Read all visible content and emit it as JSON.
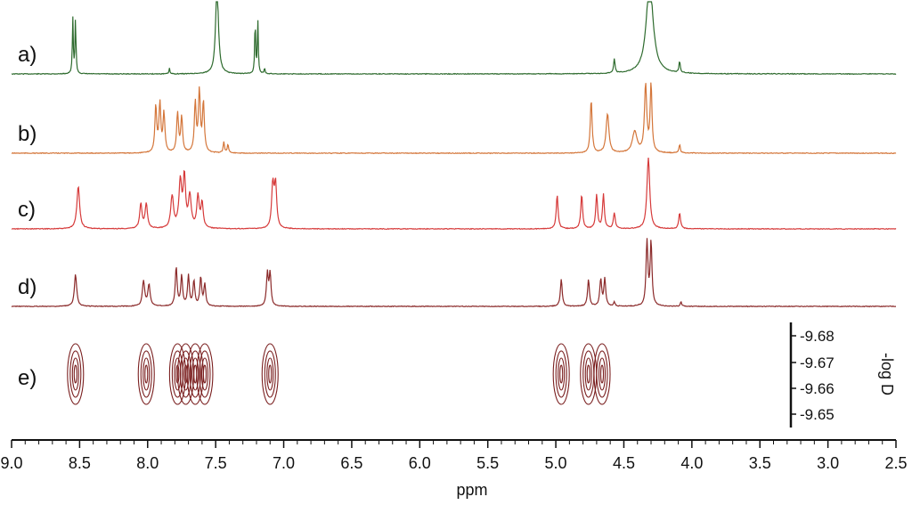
{
  "chart_data": {
    "type": "line",
    "title": "",
    "xlabel": "ppm",
    "xlim": [
      9.0,
      2.5
    ],
    "x_reversed": true,
    "x_ticks": [
      "9.0",
      "8.5",
      "8.0",
      "7.5",
      "7.0",
      "6.5",
      "6.0",
      "5.5",
      "5.0",
      "4.5",
      "4.0",
      "3.5",
      "3.0",
      "2.5"
    ],
    "grid": false,
    "series": [
      {
        "name": "a)",
        "color": "#2e6b2e",
        "peaks": [
          {
            "ppm": 8.55,
            "h": 0.78,
            "w": 0.004
          },
          {
            "ppm": 8.53,
            "h": 0.78,
            "w": 0.004
          },
          {
            "ppm": 7.84,
            "h": 0.08,
            "w": 0.004
          },
          {
            "ppm": 7.49,
            "h": 1.3,
            "w": 0.012
          },
          {
            "ppm": 7.21,
            "h": 0.75,
            "w": 0.004
          },
          {
            "ppm": 7.19,
            "h": 0.75,
            "w": 0.004
          },
          {
            "ppm": 7.14,
            "h": 0.08,
            "w": 0.004
          },
          {
            "ppm": 4.57,
            "h": 0.2,
            "w": 0.006
          },
          {
            "ppm": 4.31,
            "h": 1.3,
            "w": 0.03
          },
          {
            "ppm": 4.09,
            "h": 0.16,
            "w": 0.006
          }
        ]
      },
      {
        "name": "b)",
        "color": "#d4763a",
        "peaks": [
          {
            "ppm": 7.94,
            "h": 0.65,
            "w": 0.008
          },
          {
            "ppm": 7.91,
            "h": 0.68,
            "w": 0.008
          },
          {
            "ppm": 7.88,
            "h": 0.55,
            "w": 0.008
          },
          {
            "ppm": 7.78,
            "h": 0.55,
            "w": 0.008
          },
          {
            "ppm": 7.75,
            "h": 0.5,
            "w": 0.008
          },
          {
            "ppm": 7.65,
            "h": 0.7,
            "w": 0.008
          },
          {
            "ppm": 7.62,
            "h": 0.85,
            "w": 0.008
          },
          {
            "ppm": 7.59,
            "h": 0.7,
            "w": 0.008
          },
          {
            "ppm": 7.44,
            "h": 0.15,
            "w": 0.006
          },
          {
            "ppm": 7.41,
            "h": 0.12,
            "w": 0.006
          },
          {
            "ppm": 4.74,
            "h": 0.75,
            "w": 0.008
          },
          {
            "ppm": 4.62,
            "h": 0.55,
            "w": 0.012
          },
          {
            "ppm": 4.42,
            "h": 0.3,
            "w": 0.02
          },
          {
            "ppm": 4.34,
            "h": 0.95,
            "w": 0.01
          },
          {
            "ppm": 4.3,
            "h": 0.95,
            "w": 0.008
          },
          {
            "ppm": 4.09,
            "h": 0.12,
            "w": 0.006
          }
        ]
      },
      {
        "name": "c)",
        "color": "#d63a3a",
        "peaks": [
          {
            "ppm": 8.51,
            "h": 0.6,
            "w": 0.012
          },
          {
            "ppm": 8.05,
            "h": 0.35,
            "w": 0.01
          },
          {
            "ppm": 8.01,
            "h": 0.35,
            "w": 0.01
          },
          {
            "ppm": 7.82,
            "h": 0.45,
            "w": 0.012
          },
          {
            "ppm": 7.76,
            "h": 0.65,
            "w": 0.012
          },
          {
            "ppm": 7.73,
            "h": 0.7,
            "w": 0.01
          },
          {
            "ppm": 7.69,
            "h": 0.45,
            "w": 0.012
          },
          {
            "ppm": 7.63,
            "h": 0.45,
            "w": 0.01
          },
          {
            "ppm": 7.6,
            "h": 0.35,
            "w": 0.01
          },
          {
            "ppm": 7.08,
            "h": 0.6,
            "w": 0.01
          },
          {
            "ppm": 7.06,
            "h": 0.6,
            "w": 0.01
          },
          {
            "ppm": 4.99,
            "h": 0.48,
            "w": 0.008
          },
          {
            "ppm": 4.81,
            "h": 0.48,
            "w": 0.008
          },
          {
            "ppm": 4.7,
            "h": 0.48,
            "w": 0.008
          },
          {
            "ppm": 4.65,
            "h": 0.48,
            "w": 0.008
          },
          {
            "ppm": 4.57,
            "h": 0.22,
            "w": 0.008
          },
          {
            "ppm": 4.32,
            "h": 1.0,
            "w": 0.012
          },
          {
            "ppm": 4.09,
            "h": 0.22,
            "w": 0.008
          }
        ]
      },
      {
        "name": "d)",
        "color": "#8b2a2a",
        "peaks": [
          {
            "ppm": 8.53,
            "h": 0.45,
            "w": 0.01
          },
          {
            "ppm": 8.03,
            "h": 0.35,
            "w": 0.01
          },
          {
            "ppm": 7.99,
            "h": 0.3,
            "w": 0.01
          },
          {
            "ppm": 7.79,
            "h": 0.55,
            "w": 0.008
          },
          {
            "ppm": 7.75,
            "h": 0.42,
            "w": 0.008
          },
          {
            "ppm": 7.7,
            "h": 0.42,
            "w": 0.008
          },
          {
            "ppm": 7.66,
            "h": 0.35,
            "w": 0.008
          },
          {
            "ppm": 7.61,
            "h": 0.4,
            "w": 0.008
          },
          {
            "ppm": 7.58,
            "h": 0.3,
            "w": 0.008
          },
          {
            "ppm": 7.12,
            "h": 0.45,
            "w": 0.008
          },
          {
            "ppm": 7.1,
            "h": 0.45,
            "w": 0.008
          },
          {
            "ppm": 4.96,
            "h": 0.38,
            "w": 0.008
          },
          {
            "ppm": 4.76,
            "h": 0.38,
            "w": 0.008
          },
          {
            "ppm": 4.67,
            "h": 0.38,
            "w": 0.008
          },
          {
            "ppm": 4.64,
            "h": 0.38,
            "w": 0.008
          },
          {
            "ppm": 4.57,
            "h": 0.06,
            "w": 0.006
          },
          {
            "ppm": 4.33,
            "h": 0.9,
            "w": 0.008
          },
          {
            "ppm": 4.3,
            "h": 0.9,
            "w": 0.008
          },
          {
            "ppm": 4.08,
            "h": 0.06,
            "w": 0.006
          }
        ]
      }
    ],
    "dosy": {
      "label": "e)",
      "color": "#7a1f1f",
      "ylabel": "-log D",
      "y_ticks": [
        "-9.68",
        "-9.67",
        "-9.66",
        "-9.65"
      ],
      "spots": [
        {
          "ppm": 8.53,
          "logD": -9.665
        },
        {
          "ppm": 8.01,
          "logD": -9.665
        },
        {
          "ppm": 7.78,
          "logD": -9.665
        },
        {
          "ppm": 7.72,
          "logD": -9.665
        },
        {
          "ppm": 7.65,
          "logD": -9.665
        },
        {
          "ppm": 7.58,
          "logD": -9.665
        },
        {
          "ppm": 7.1,
          "logD": -9.665
        },
        {
          "ppm": 4.96,
          "logD": -9.665
        },
        {
          "ppm": 4.76,
          "logD": -9.665
        },
        {
          "ppm": 4.66,
          "logD": -9.665
        }
      ]
    }
  }
}
